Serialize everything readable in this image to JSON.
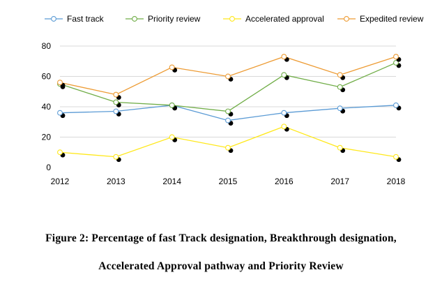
{
  "chart_data": {
    "type": "line",
    "x": [
      "2012",
      "2013",
      "2014",
      "2015",
      "2016",
      "2017",
      "2018"
    ],
    "ylim": [
      0,
      80
    ],
    "yticks": [
      0,
      20,
      40,
      60,
      80
    ],
    "grid": true,
    "legend_position": "top",
    "series": [
      {
        "name": "Fast track",
        "color": "#5b9bd5",
        "values": [
          36,
          37,
          41,
          31,
          36,
          39,
          41
        ]
      },
      {
        "name": "Priority review",
        "color": "#70ad47",
        "values": [
          55,
          43,
          41,
          37,
          61,
          53,
          69
        ]
      },
      {
        "name": "Accelerated approval",
        "color": "#ffe81a",
        "values": [
          10,
          7,
          20,
          13,
          27,
          13,
          7
        ]
      },
      {
        "name": "Expedited review",
        "color": "#ed9b33",
        "values": [
          56,
          48,
          66,
          60,
          73,
          61,
          73
        ]
      }
    ]
  },
  "caption": {
    "line1": "Figure 2: Percentage of fast Track designation, Breakthrough designation,",
    "line2": "Accelerated  Approval pathway and Priority Review"
  }
}
